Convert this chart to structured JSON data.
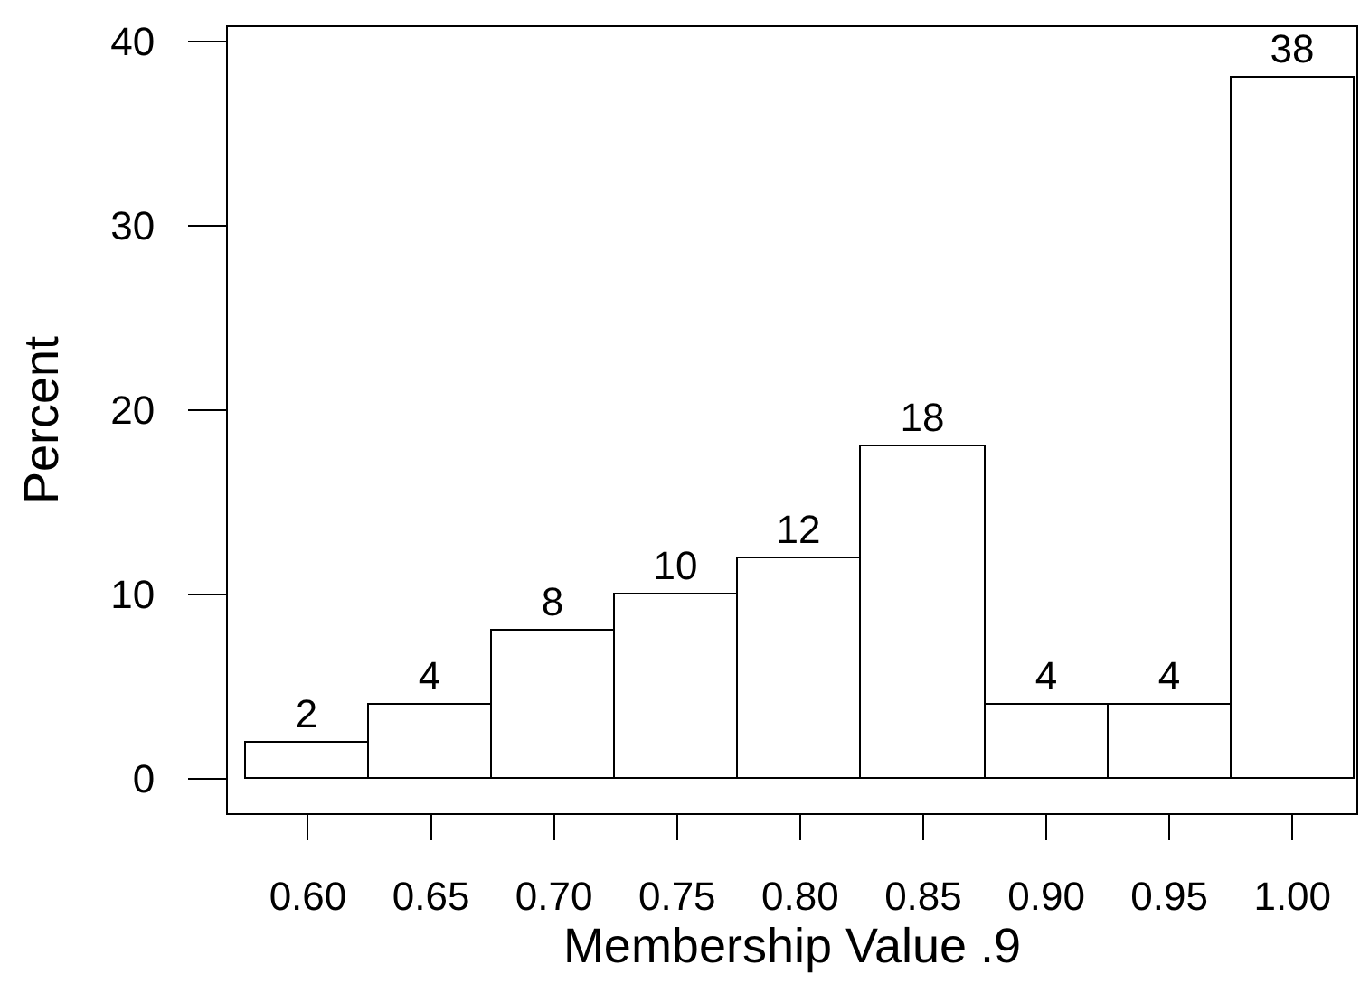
{
  "chart_data": {
    "type": "histogram",
    "xlabel": "Membership Value .9",
    "ylabel": "Percent",
    "bins": [
      0.575,
      0.625,
      0.675,
      0.725,
      0.775,
      0.825,
      0.875,
      0.925,
      0.975,
      1.025
    ],
    "values": [
      2,
      4,
      8,
      10,
      12,
      18,
      4,
      4,
      38
    ],
    "color": "#ffffff",
    "data_labels": true,
    "xlim": [
      0.5675,
      1.026
    ],
    "ylim": [
      -1.86,
      40.78
    ],
    "xticks": [
      {
        "value": 0.6,
        "label": "0.60"
      },
      {
        "value": 0.65,
        "label": "0.65"
      },
      {
        "value": 0.7,
        "label": "0.70"
      },
      {
        "value": 0.75,
        "label": "0.75"
      },
      {
        "value": 0.8,
        "label": "0.80"
      },
      {
        "value": 0.85,
        "label": "0.85"
      },
      {
        "value": 0.9,
        "label": "0.90"
      },
      {
        "value": 0.95,
        "label": "0.95"
      },
      {
        "value": 1.0,
        "label": "1.00"
      }
    ],
    "yticks": [
      0,
      10,
      20,
      30,
      40
    ]
  }
}
